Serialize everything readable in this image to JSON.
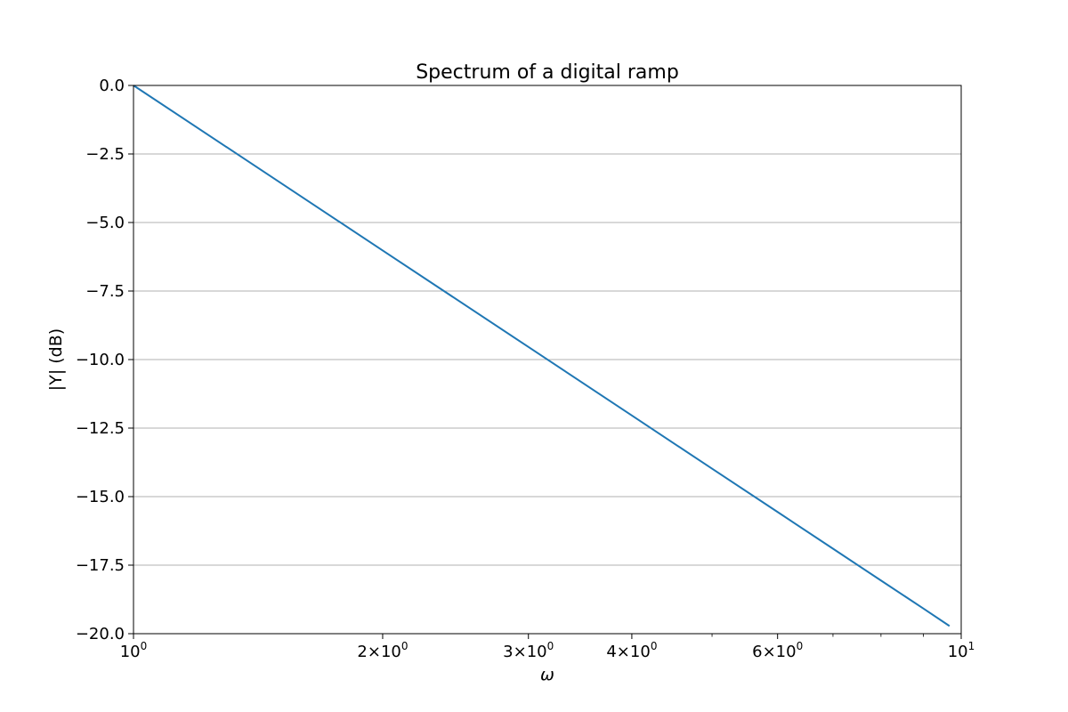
{
  "chart_data": {
    "type": "line",
    "title": "Spectrum of a digital ramp",
    "xlabel": "ω",
    "ylabel": "|Y| (dB)",
    "x_scale": "log",
    "xlim": [
      1,
      10
    ],
    "ylim": [
      -20,
      0
    ],
    "grid": "y-major",
    "series_color": "#1f77b4",
    "x_ticks": [
      {
        "value": 1,
        "coef": "",
        "base": "10",
        "exp": "0"
      },
      {
        "value": 2,
        "coef": "2×",
        "base": "10",
        "exp": "0"
      },
      {
        "value": 3,
        "coef": "3×",
        "base": "10",
        "exp": "0"
      },
      {
        "value": 4,
        "coef": "4×",
        "base": "10",
        "exp": "0"
      },
      {
        "value": 6,
        "coef": "6×",
        "base": "10",
        "exp": "0"
      },
      {
        "value": 10,
        "coef": "",
        "base": "10",
        "exp": "1"
      }
    ],
    "x_minor_ticks": [
      5,
      7,
      8,
      9
    ],
    "y_ticks": [
      {
        "value": 0,
        "label": "0.0"
      },
      {
        "value": -2.5,
        "label": "−2.5"
      },
      {
        "value": -5,
        "label": "−5.0"
      },
      {
        "value": -7.5,
        "label": "−7.5"
      },
      {
        "value": -10,
        "label": "−10.0"
      },
      {
        "value": -12.5,
        "label": "−12.5"
      },
      {
        "value": -15,
        "label": "−15.0"
      },
      {
        "value": -17.5,
        "label": "−17.5"
      },
      {
        "value": -20,
        "label": "−20.0"
      }
    ],
    "series": [
      {
        "x": [
          1,
          1.5,
          2,
          3,
          4,
          5,
          6,
          7,
          8,
          9,
          9.68
        ],
        "y": [
          0,
          -3.52,
          -6.02,
          -9.54,
          -12.04,
          -13.98,
          -15.56,
          -16.9,
          -18.06,
          -19.08,
          -19.72
        ]
      }
    ]
  }
}
